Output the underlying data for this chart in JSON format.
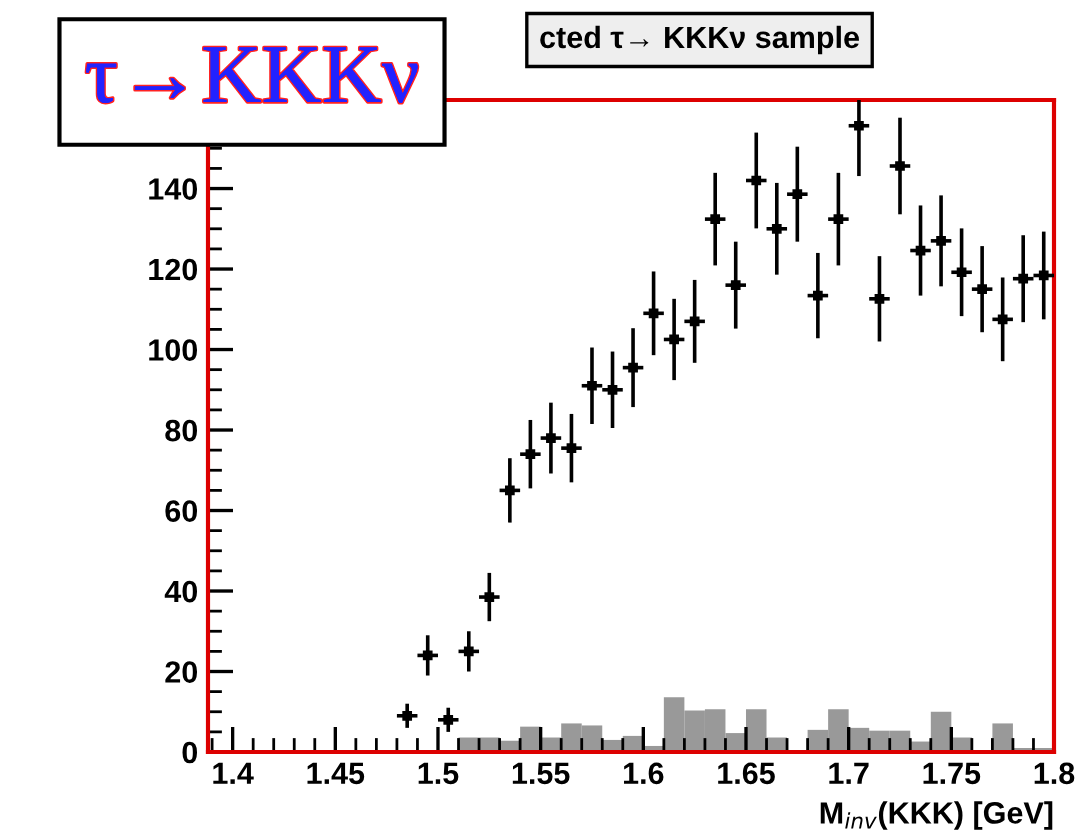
{
  "chart_data": {
    "type": "scatter",
    "title": "cted τ→ KKKν sample",
    "xlabel": "M$_{inv}$(KKK) [GeV]",
    "annotations": [
      "τ→KKKν"
    ],
    "xlim": [
      1.388,
      1.8
    ],
    "ylim": [
      0,
      162
    ],
    "xticks": [
      1.4,
      1.45,
      1.5,
      1.55,
      1.6,
      1.65,
      1.7,
      1.75,
      1.8
    ],
    "yticks": [
      0,
      20,
      40,
      60,
      80,
      100,
      120,
      140
    ],
    "grid": false,
    "legend": false,
    "series": [
      {
        "type": "histogram",
        "color": "#999999",
        "bins": [
          1.51,
          1.52,
          1.53,
          1.54,
          1.55,
          1.56,
          1.57,
          1.58,
          1.59,
          1.6,
          1.61,
          1.62,
          1.63,
          1.64,
          1.65,
          1.66,
          1.67,
          1.68,
          1.69,
          1.7,
          1.71,
          1.72,
          1.73,
          1.74,
          1.75,
          1.76,
          1.77,
          1.78,
          1.79,
          1.8
        ],
        "values": [
          3.6,
          3.6,
          2.8,
          6.3,
          3.6,
          7.1,
          6.6,
          3,
          4,
          1.5,
          13.6,
          10.3,
          10.6,
          4.7,
          10.6,
          3.6,
          0,
          5.5,
          10.6,
          6,
          5.3,
          5.3,
          2.6,
          10,
          3.6,
          0,
          7.1,
          1,
          1
        ]
      },
      {
        "color": "#000000",
        "x": [
          1.485,
          1.495,
          1.505,
          1.515,
          1.525,
          1.535,
          1.545,
          1.555,
          1.565,
          1.575,
          1.585,
          1.595,
          1.605,
          1.615,
          1.625,
          1.635,
          1.645,
          1.655,
          1.665,
          1.675,
          1.685,
          1.695,
          1.705,
          1.715,
          1.725,
          1.735,
          1.745,
          1.755,
          1.765,
          1.775,
          1.785,
          1.795
        ],
        "values": [
          9,
          24,
          8,
          25,
          38.5,
          65,
          74,
          78,
          75.5,
          91,
          90,
          95.5,
          109,
          102.5,
          107,
          132.4,
          116,
          142,
          130,
          138.6,
          113.4,
          132.4,
          155.6,
          112.6,
          145.6,
          124.6,
          127,
          119.2,
          115,
          107.5,
          117.6,
          118.4
        ],
        "xerrors": [
          0.005,
          0.005,
          0.005,
          0.005,
          0.005,
          0.005,
          0.005,
          0.005,
          0.005,
          0.005,
          0.005,
          0.005,
          0.005,
          0.005,
          0.005,
          0.005,
          0.005,
          0.005,
          0.005,
          0.005,
          0.005,
          0.005,
          0.005,
          0.005,
          0.005,
          0.005,
          0.005,
          0.005,
          0.005,
          0.005,
          0.005,
          0.005
        ],
        "errors": [
          3,
          5,
          3,
          5,
          6,
          8,
          8.5,
          8.8,
          8.5,
          9.5,
          9.5,
          9.8,
          10.4,
          10.1,
          10.3,
          11.5,
          10.8,
          11.9,
          11.4,
          11.8,
          10.6,
          11.5,
          12.5,
          10.6,
          12,
          11.2,
          11.3,
          10.9,
          10.7,
          10.4,
          10.8,
          10.9
        ]
      }
    ]
  }
}
